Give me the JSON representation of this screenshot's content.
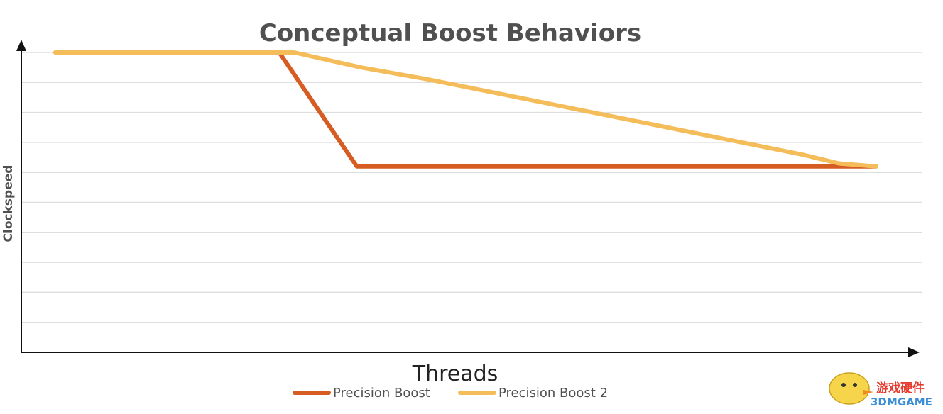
{
  "chart_data": {
    "type": "line",
    "title": "Conceptual Boost Behaviors",
    "xlabel": "Threads",
    "ylabel": "Clockspeed",
    "xlim": [
      0,
      12
    ],
    "ylim": [
      0,
      10
    ],
    "grid": true,
    "legend_position": "bottom",
    "series": [
      {
        "name": "Precision Boost",
        "color": "#d65c22",
        "x": [
          0,
          3,
          4.04,
          11
        ],
        "y": [
          10,
          10,
          6.2,
          6.2
        ]
      },
      {
        "name": "Precision Boost 2",
        "color": "#f5bd59",
        "x": [
          0,
          3,
          3.2,
          4.1,
          5,
          6,
          7,
          8,
          9,
          10,
          10.5,
          11
        ],
        "y": [
          10,
          10,
          10,
          9.5,
          9.1,
          8.6,
          8.1,
          7.6,
          7.1,
          6.6,
          6.3,
          6.2
        ]
      }
    ]
  },
  "watermark": {
    "brand_text": "游戏硬件",
    "site_text": "3DMGAME",
    "colors": {
      "brand": "#e63b2e",
      "site": "#3b8ed6",
      "mascot": "#f6d54a"
    }
  }
}
